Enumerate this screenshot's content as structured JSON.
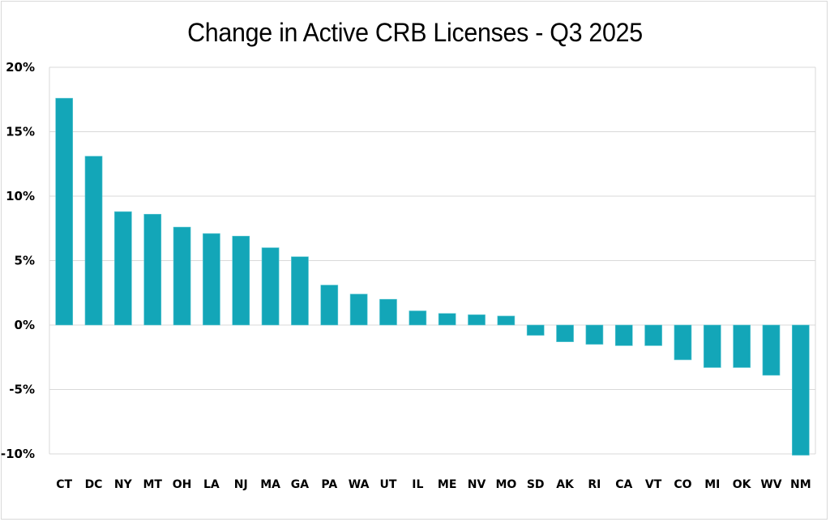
{
  "chart_data": {
    "type": "bar",
    "title": "Change in Active CRB Licenses - Q3 2025",
    "xlabel": "",
    "ylabel": "",
    "categories": [
      "CT",
      "DC",
      "NY",
      "MT",
      "OH",
      "LA",
      "NJ",
      "MA",
      "GA",
      "PA",
      "WA",
      "UT",
      "IL",
      "ME",
      "NV",
      "MO",
      "SD",
      "AK",
      "RI",
      "CA",
      "VT",
      "CO",
      "MI",
      "OK",
      "WV",
      "NM"
    ],
    "values": [
      17.6,
      13.1,
      8.8,
      8.6,
      7.6,
      7.1,
      6.9,
      6.0,
      5.3,
      3.1,
      2.4,
      2.0,
      1.1,
      0.9,
      0.8,
      0.7,
      -0.8,
      -1.3,
      -1.5,
      -1.6,
      -1.6,
      -2.7,
      -3.3,
      -3.3,
      -3.9,
      -10.1
    ],
    "value_unit": "%",
    "ylim": [
      -10,
      20
    ],
    "yticks": [
      20,
      15,
      10,
      5,
      0,
      -5,
      -10
    ],
    "ytick_labels": [
      "20%",
      "15%",
      "10%",
      "5%",
      "0%",
      "-5%",
      "-10%"
    ],
    "grid": true,
    "legend": "none",
    "bar_color": "#13A6B8"
  }
}
